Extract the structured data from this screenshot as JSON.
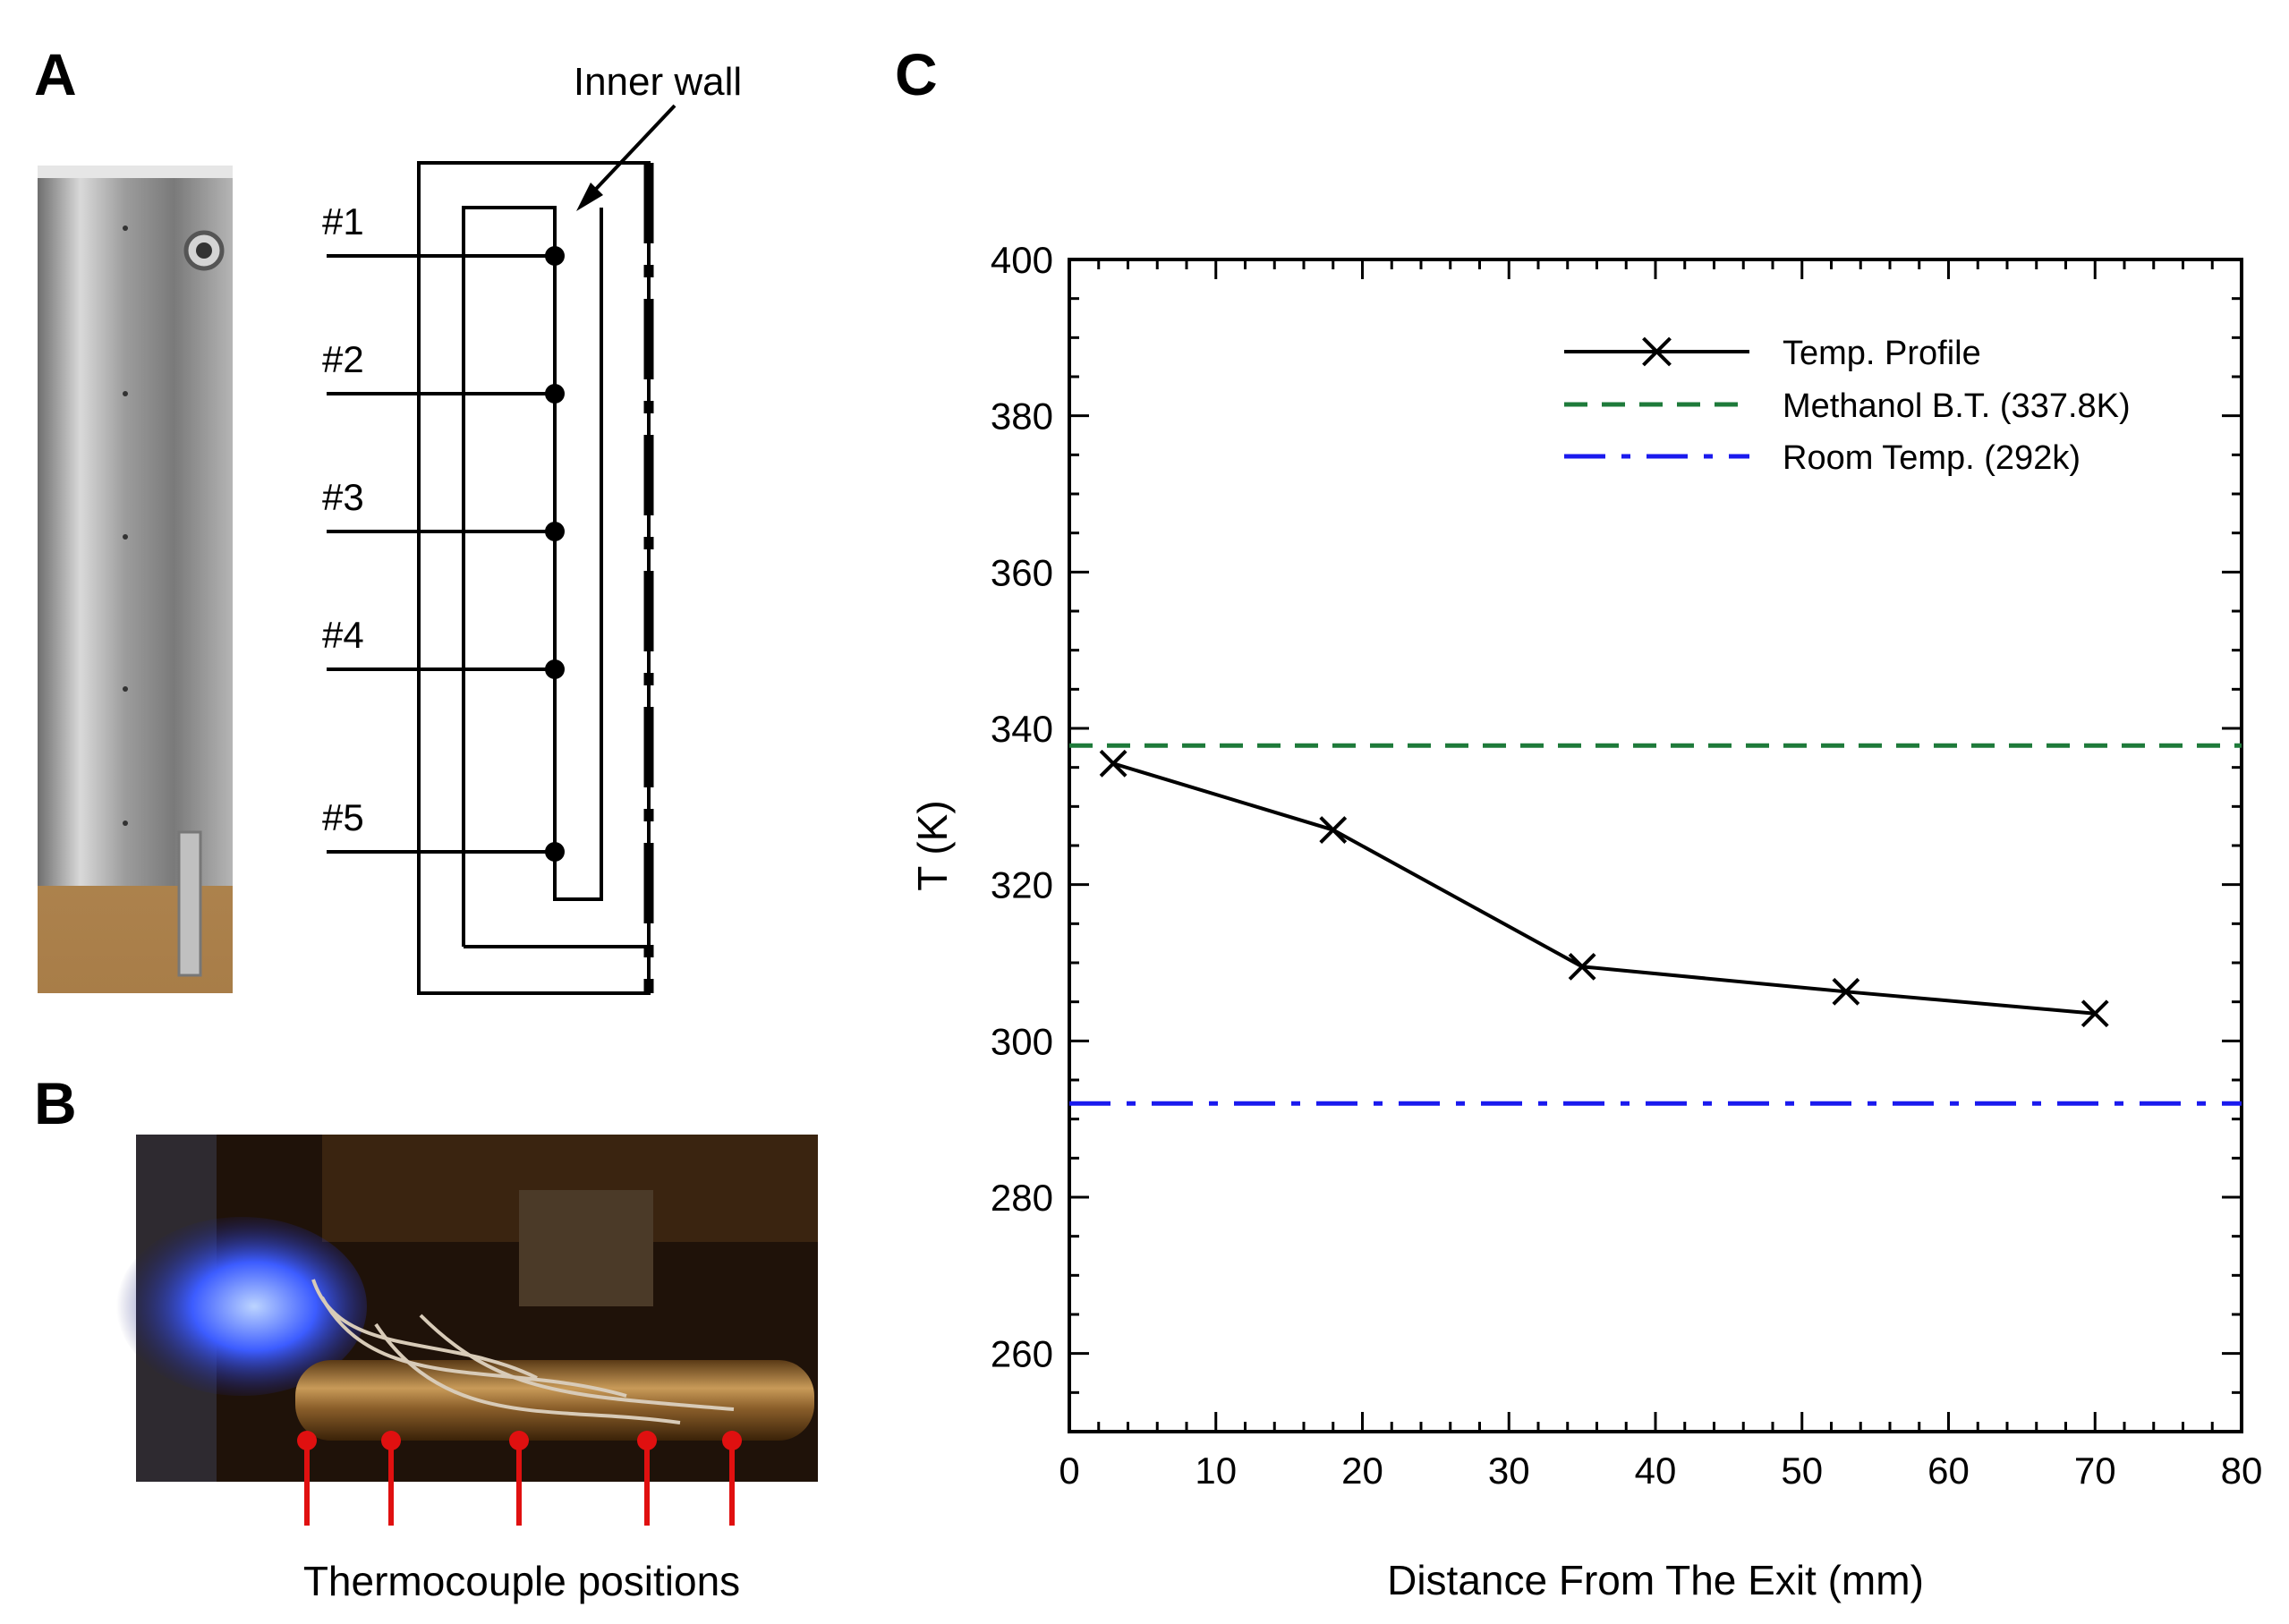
{
  "panels": {
    "a": {
      "label": "A",
      "annotation": "Inner wall",
      "thermocouples": [
        "#1",
        "#2",
        "#3",
        "#4",
        "#5"
      ]
    },
    "b": {
      "label": "B",
      "caption": "Thermocouple positions"
    },
    "c": {
      "label": "C"
    }
  },
  "colors": {
    "profile": "#000000",
    "methanol": "#1e7a3a",
    "room": "#1a1aee",
    "thermo_marker": "#e01010"
  },
  "chart_data": {
    "type": "line",
    "title": "",
    "xlabel": "Distance From The Exit (mm)",
    "ylabel": "T (K)",
    "xlim": [
      0,
      80
    ],
    "ylim": [
      250,
      400
    ],
    "xticks": [
      0,
      10,
      20,
      30,
      40,
      50,
      60,
      70,
      80
    ],
    "yticks": [
      260,
      280,
      300,
      320,
      340,
      360,
      380,
      400
    ],
    "grid": false,
    "legend_position": "top-right",
    "series": [
      {
        "name": "Temp. Profile",
        "style": "solid-x-marker",
        "color": "#000000",
        "x": [
          3,
          18,
          35,
          53,
          70
        ],
        "y": [
          335.5,
          327,
          309.5,
          306.3,
          303.5
        ]
      },
      {
        "name": "Methanol B.T. (337.8K)",
        "style": "dashed",
        "color": "#1e7a3a",
        "x": [
          0,
          80
        ],
        "y": [
          337.8,
          337.8
        ]
      },
      {
        "name": "Room Temp. (292k)",
        "style": "dash-dot",
        "color": "#1a1aee",
        "x": [
          0,
          80
        ],
        "y": [
          292,
          292
        ]
      }
    ]
  }
}
